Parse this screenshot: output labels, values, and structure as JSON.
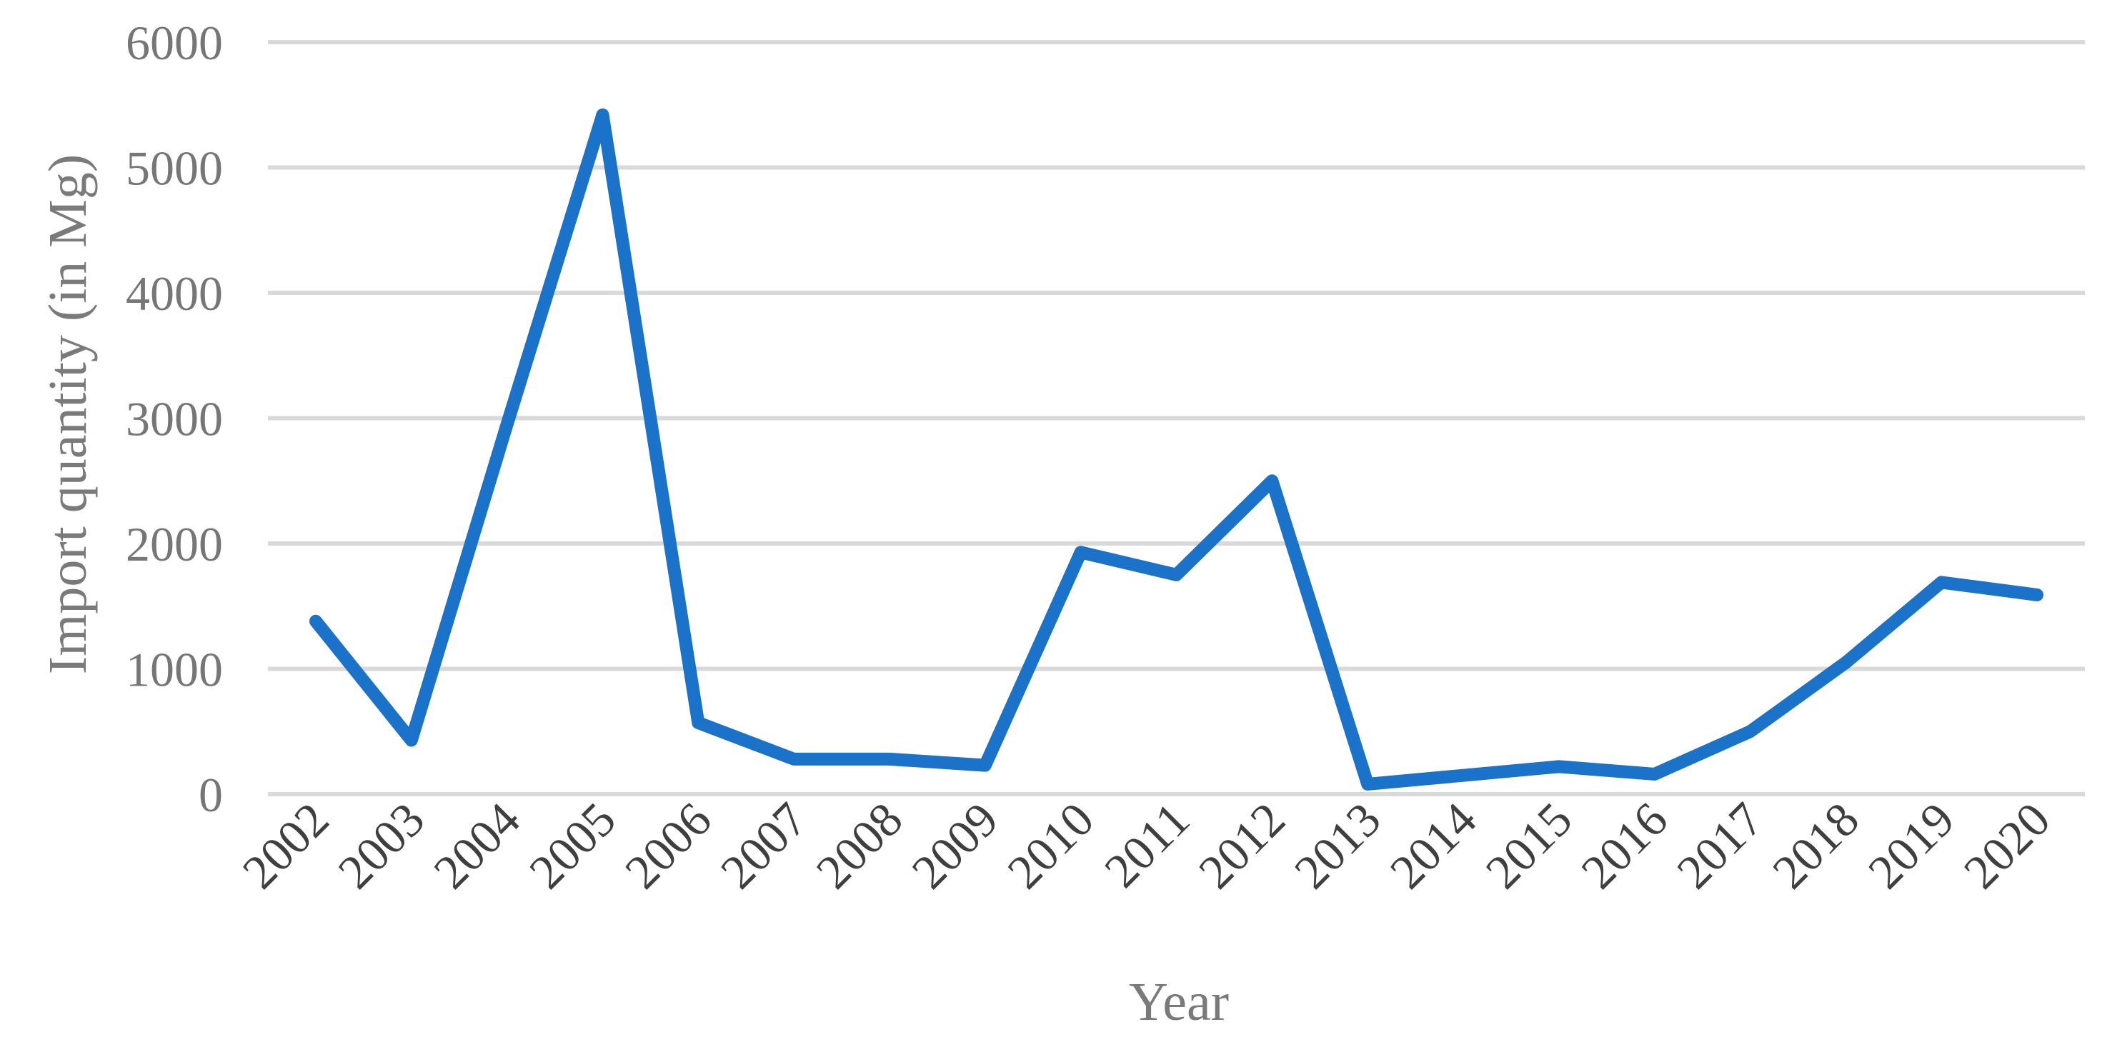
{
  "chart_data": {
    "type": "line",
    "title": "",
    "xlabel": "Year",
    "ylabel": "Import quantity (in Mg)",
    "categories": [
      "2002",
      "2003",
      "2004",
      "2005",
      "2006",
      "2007",
      "2008",
      "2009",
      "2010",
      "2011",
      "2012",
      "2013",
      "2014",
      "2015",
      "2016",
      "2017",
      "2018",
      "2019",
      "2020"
    ],
    "yticks": [
      "0",
      "1000",
      "2000",
      "3000",
      "4000",
      "5000",
      "6000"
    ],
    "ylim": [
      0,
      6000
    ],
    "grid": true,
    "legend": "none",
    "series": [
      {
        "color": "#1a72c9",
        "values": [
          1380,
          430,
          2950,
          5420,
          570,
          280,
          280,
          230,
          1930,
          1750,
          2500,
          80,
          150,
          220,
          160,
          500,
          1050,
          1690,
          1590
        ]
      }
    ]
  }
}
